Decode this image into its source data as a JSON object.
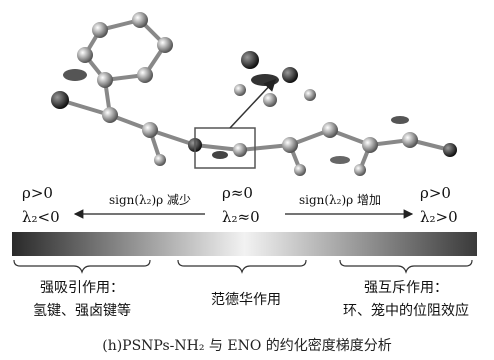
{
  "left": {
    "rho": "ρ>0",
    "lambda": "λ₂<0",
    "arrow": "sign(λ₂)ρ 减少",
    "label_line1": "强吸引作用：",
    "label_line2": "氢键、强卤键等"
  },
  "center": {
    "rho": "ρ≈0",
    "lambda": "λ₂≈0",
    "label": "范德华作用"
  },
  "right": {
    "rho": "ρ>0",
    "lambda": "λ₂>0",
    "arrow": "sign(λ₂)ρ 增加",
    "label_line1": "强互斥作用：",
    "label_line2": "环、笼中的位阻效应"
  },
  "caption": "(h)PSNPs-NH₂ 与 ENO 的约化密度梯度分析"
}
